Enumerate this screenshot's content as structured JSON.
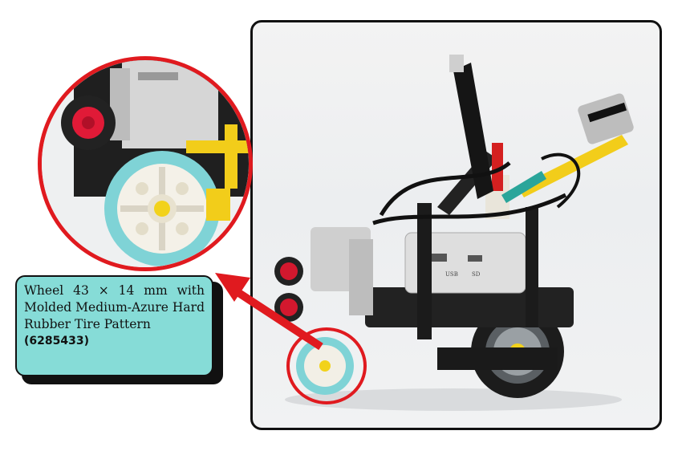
{
  "callout": {
    "description": "Wheel 43 × 14 mm with Molded Medium-Azure Hard Rubber Tire Pattern",
    "part_number": "(6285433)"
  },
  "photo": {
    "port_labels": [
      "USB",
      "SD"
    ]
  },
  "colors": {
    "highlight": "#e01a1f",
    "callout_bg": "#86dcd7",
    "tire": "#7fd3d6"
  }
}
